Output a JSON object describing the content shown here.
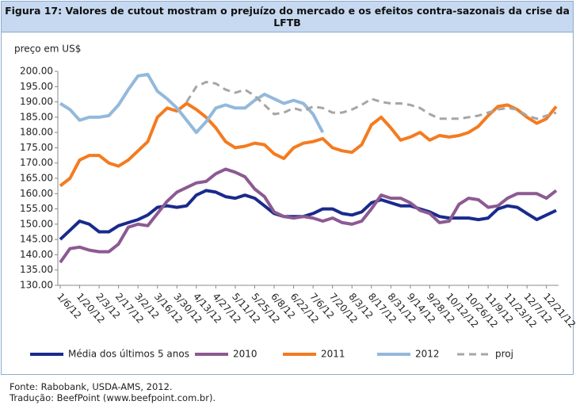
{
  "chart_data": {
    "type": "line",
    "title": "Figura 17: Valores de cutout mostram o prejuízo do mercado e os efeitos contra-sazonais da crise da LFTB",
    "y_label": "preço em US$",
    "notes": [
      "Fonte: Rabobank, USDA-AMS, 2012.",
      "Tradução: BeefPoint (www.beefpoint.com.br)."
    ],
    "legend": "bottom",
    "grid": false,
    "categories": [
      "1/6/12",
      null,
      "1/20/12",
      null,
      "2/3/12",
      null,
      "2/17/12",
      null,
      "3/2/12",
      null,
      "3/16/12",
      null,
      "3/30/12",
      null,
      "4/13/12",
      null,
      "4/27/12",
      null,
      "5/11/12",
      null,
      "5/25/12",
      null,
      "6/8/12",
      null,
      "6/22/12",
      null,
      "7/6/12",
      null,
      "7/20/12",
      null,
      "8/3/12",
      null,
      "8/17/12",
      null,
      "8/31/12",
      null,
      "9/14/12",
      null,
      "9/28/12",
      null,
      "10/12/12",
      null,
      "10/26/12",
      null,
      "11/9/12",
      null,
      "11/23/12",
      null,
      "12/7/12",
      null,
      "12/21/12",
      null
    ],
    "ylim": [
      130,
      200
    ],
    "yticks": [
      {
        "value": 130,
        "label": "130.00"
      },
      {
        "value": 135,
        "label": "135.00"
      },
      {
        "value": 140,
        "label": "140.00"
      },
      {
        "value": 145,
        "label": "145.00"
      },
      {
        "value": 150,
        "label": "150.00"
      },
      {
        "value": 155,
        "label": "155.00"
      },
      {
        "value": 160,
        "label": "160.00"
      },
      {
        "value": 165,
        "label": "165.00"
      },
      {
        "value": 170,
        "label": "170.00"
      },
      {
        "value": 175,
        "label": "175.00"
      },
      {
        "value": 180,
        "label": "180.00"
      },
      {
        "value": 185,
        "label": "185.00"
      },
      {
        "value": 190,
        "label": "190.00"
      },
      {
        "value": 195,
        "label": "195.00"
      },
      {
        "value": 200,
        "label": "200.00"
      }
    ],
    "series": [
      {
        "name": "Média dos últimos 5 anos",
        "color": "#1a2a8c",
        "dashed": false,
        "values": [
          145,
          148,
          151,
          150,
          147.5,
          147.5,
          149.5,
          150.5,
          151.5,
          153,
          155.5,
          156,
          155.5,
          156,
          159.5,
          161,
          160.5,
          159,
          158.5,
          159.5,
          158.5,
          156,
          153.5,
          152.5,
          152.5,
          152.5,
          153.5,
          155,
          155,
          153.5,
          153,
          154,
          157,
          158,
          157,
          156,
          156,
          155,
          154,
          152.5,
          152,
          152,
          152,
          151.5,
          152,
          155,
          156,
          155.5,
          153.5,
          151.5,
          153,
          154.5
        ]
      },
      {
        "name": "2010",
        "color": "#8c5a92",
        "dashed": false,
        "values": [
          137.5,
          142,
          142.5,
          141.5,
          141,
          141,
          143.5,
          149,
          150,
          149.5,
          153.5,
          157.5,
          160.5,
          162,
          163.5,
          164,
          166.5,
          168,
          167,
          165.5,
          161.5,
          159,
          154,
          152.5,
          152,
          152.5,
          152,
          151,
          152,
          150.5,
          150,
          151,
          155,
          159.5,
          158.5,
          158.5,
          157,
          154.5,
          153.5,
          150.5,
          151,
          156.5,
          158.5,
          158,
          155.5,
          156,
          158.5,
          160,
          160,
          160,
          158.5,
          161
        ]
      },
      {
        "name": "2011",
        "color": "#f47b20",
        "dashed": false,
        "values": [
          162.5,
          165,
          171,
          172.5,
          172.5,
          170,
          169,
          171,
          174,
          177,
          185,
          188,
          187,
          189.5,
          187.5,
          185,
          181.5,
          177,
          175,
          175.5,
          176.5,
          176,
          173,
          171.5,
          175,
          176.5,
          177,
          178,
          175,
          174,
          173.5,
          176,
          182.5,
          185,
          181.5,
          177.5,
          178.5,
          180,
          177.5,
          179,
          178.5,
          179,
          180,
          182,
          185.5,
          188.5,
          189,
          187.5,
          185,
          183,
          184.5,
          188.5
        ]
      },
      {
        "name": "2012",
        "color": "#93b9db",
        "dashed": false,
        "values": [
          189.5,
          187.5,
          184,
          185,
          185,
          185.5,
          189,
          194,
          198.5,
          199,
          193.5,
          191,
          188,
          184,
          180,
          183.5,
          188,
          189,
          188,
          188,
          190.5,
          192.5,
          191,
          189.5,
          190.5,
          189.5,
          186,
          180,
          null,
          null,
          null,
          null,
          null,
          null,
          null,
          null,
          null,
          null,
          null,
          null,
          null,
          null,
          null,
          null,
          null,
          null,
          null,
          null,
          null,
          null,
          null,
          null
        ]
      },
      {
        "name": "proj",
        "color": "#a6a6a6",
        "dashed": true,
        "values": [
          null,
          null,
          null,
          null,
          null,
          null,
          null,
          null,
          null,
          null,
          null,
          null,
          null,
          190,
          195,
          196.5,
          196,
          194,
          193,
          194,
          192,
          189,
          186,
          186.5,
          188,
          187,
          188.5,
          188,
          186.5,
          186.5,
          187.5,
          189,
          191,
          190,
          189.5,
          189.5,
          189,
          188,
          186,
          184.5,
          184.5,
          184.5,
          185,
          185.5,
          186.5,
          187.5,
          188,
          187.5,
          185.5,
          184.5,
          185.5,
          186.5
        ]
      }
    ]
  }
}
